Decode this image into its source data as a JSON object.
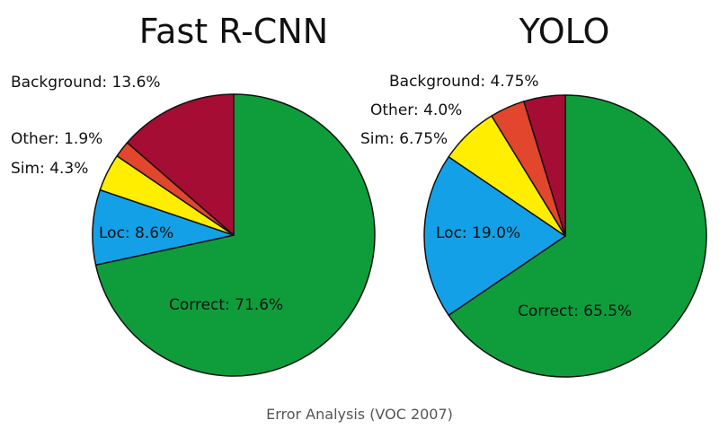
{
  "caption": "Error Analysis (VOC 2007)",
  "colors": {
    "Correct": "#0f9d3c",
    "Loc": "#14a0e6",
    "Sim": "#ffee00",
    "Other": "#e2462d",
    "Background": "#a50d35",
    "outline": "#111111"
  },
  "chart_data": [
    {
      "type": "pie",
      "title": "Fast R-CNN",
      "categories": [
        "Correct",
        "Loc",
        "Sim",
        "Other",
        "Background"
      ],
      "values": [
        71.6,
        8.6,
        4.3,
        1.9,
        13.6
      ],
      "labels": [
        "Correct: 71.6%",
        "Loc: 8.6%",
        "Sim: 4.3%",
        "Other: 1.9%",
        "Background: 13.6%"
      ]
    },
    {
      "type": "pie",
      "title": "YOLO",
      "categories": [
        "Correct",
        "Loc",
        "Sim",
        "Other",
        "Background"
      ],
      "values": [
        65.5,
        19.0,
        6.75,
        4.0,
        4.75
      ],
      "labels": [
        "Correct: 65.5%",
        "Loc: 19.0%",
        "Sim: 6.75%",
        "Other: 4.0%",
        "Background: 4.75%"
      ]
    }
  ]
}
